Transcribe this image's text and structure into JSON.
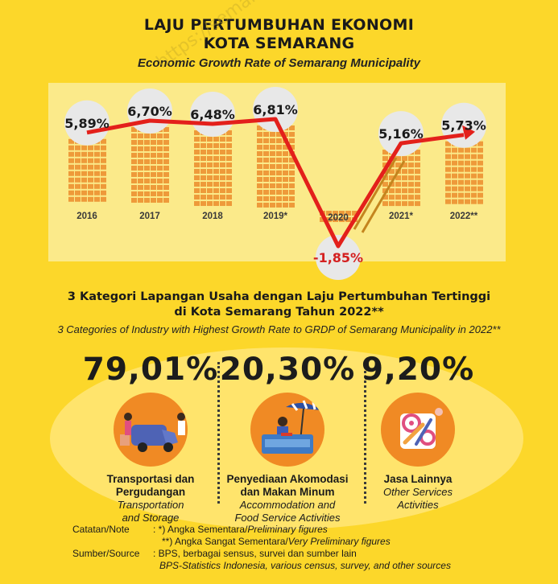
{
  "header": {
    "title_line1": "LAJU PERTUMBUHAN EKONOMI",
    "title_line2": "KOTA SEMARANG",
    "subtitle": "Economic Growth Rate of Semarang Municipality"
  },
  "watermark": "https://semarangkota.bps.go.id",
  "chart_data": {
    "type": "line",
    "categories": [
      "2016",
      "2017",
      "2018",
      "2019*",
      "2020",
      "2021*",
      "2022**"
    ],
    "values": [
      5.89,
      6.7,
      6.48,
      6.81,
      -1.85,
      5.16,
      5.73
    ],
    "value_labels": [
      "5,89%",
      "6,70%",
      "6,48%",
      "6,81%",
      "-1,85%",
      "5,16%",
      "5,73%"
    ],
    "line_color": "#E3201B",
    "background_color": "#FBEA8A",
    "grid": false
  },
  "categories_section": {
    "title_line1": "3  Kategori Lapangan Usaha dengan Laju Pertumbuhan Tertinggi",
    "title_line2": "di Kota Semarang Tahun 2022**",
    "subtitle": "3 Categories of Industry with Highest Growth Rate to GRDP of Semarang Municipality in 2022**",
    "items": [
      {
        "percent": "79,01%",
        "name_id_1": "Transportasi dan",
        "name_id_2": "Pergudangan",
        "name_en_1": "Transportation",
        "name_en_2": "and Storage",
        "icon": "delivery-van-icon"
      },
      {
        "percent": "20,30%",
        "name_id_1": "Penyediaan Akomodasi",
        "name_id_2": "dan Makan Minum",
        "name_en_1": "Accommodation and",
        "name_en_2": "Food Service Activities",
        "icon": "food-stall-icon"
      },
      {
        "percent": "9,20%",
        "name_id_1": "Jasa Lainnya",
        "name_id_2": "",
        "name_en_1": "Other Services",
        "name_en_2": "Activities",
        "icon": "gear-tools-icon"
      }
    ]
  },
  "notes": {
    "note_label": "Catatan/Note",
    "note1_mark": ": *)  Angka Sementara/",
    "note1_en": "Preliminary figures",
    "note2_mark": "**) Angka Sangat Sementara/",
    "note2_en": "Very Preliminary figures",
    "source_label": "Sumber/Source",
    "source_id": ": BPS, berbagai sensus, survei dan sumber lain",
    "source_en": "BPS-Statistics Indonesia, various census, survey, and other sources"
  }
}
